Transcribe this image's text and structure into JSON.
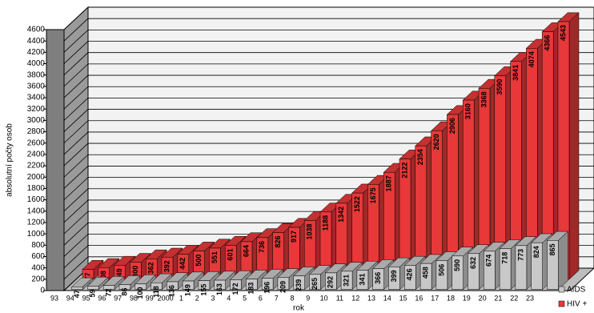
{
  "chart_data": {
    "type": "bar3d",
    "y_label": "absolutní počty osob",
    "x_label": "rok",
    "categories": [
      "93",
      "94",
      "95",
      "96",
      "97",
      "98",
      "99",
      "2000",
      "1",
      "2",
      "3",
      "4",
      "5",
      "6",
      "7",
      "8",
      "9",
      "10",
      "11",
      "12",
      "13",
      "14",
      "15",
      "16",
      "17",
      "18",
      "19",
      "20",
      "21",
      "22",
      "23"
    ],
    "series": [
      {
        "name": "AIDS",
        "color": "#c8c8c8",
        "values": [
          47,
          59,
          72,
          86,
          100,
          118,
          136,
          149,
          155,
          163,
          172,
          183,
          196,
          209,
          239,
          265,
          292,
          321,
          341,
          366,
          399,
          426,
          458,
          506,
          590,
          632,
          674,
          718,
          773,
          824,
          865
        ]
      },
      {
        "name": "HIV +",
        "color": "#e8383a",
        "values": [
          177,
          208,
          249,
          300,
          362,
          392,
          442,
          500,
          551,
          601,
          664,
          736,
          826,
          917,
          1038,
          1188,
          1342,
          1522,
          1675,
          1887,
          2122,
          2354,
          2620,
          2906,
          3160,
          3368,
          3590,
          3841,
          4074,
          4366,
          4543
        ]
      }
    ],
    "ylim": [
      0,
      4600
    ],
    "yticks": [
      0,
      200,
      400,
      600,
      800,
      1000,
      1200,
      1400,
      1600,
      1800,
      2000,
      2200,
      2400,
      2600,
      2800,
      3000,
      3200,
      3400,
      3600,
      3800,
      4000,
      4200,
      4400,
      4600
    ],
    "grid": true,
    "legend": "bottom-right"
  }
}
